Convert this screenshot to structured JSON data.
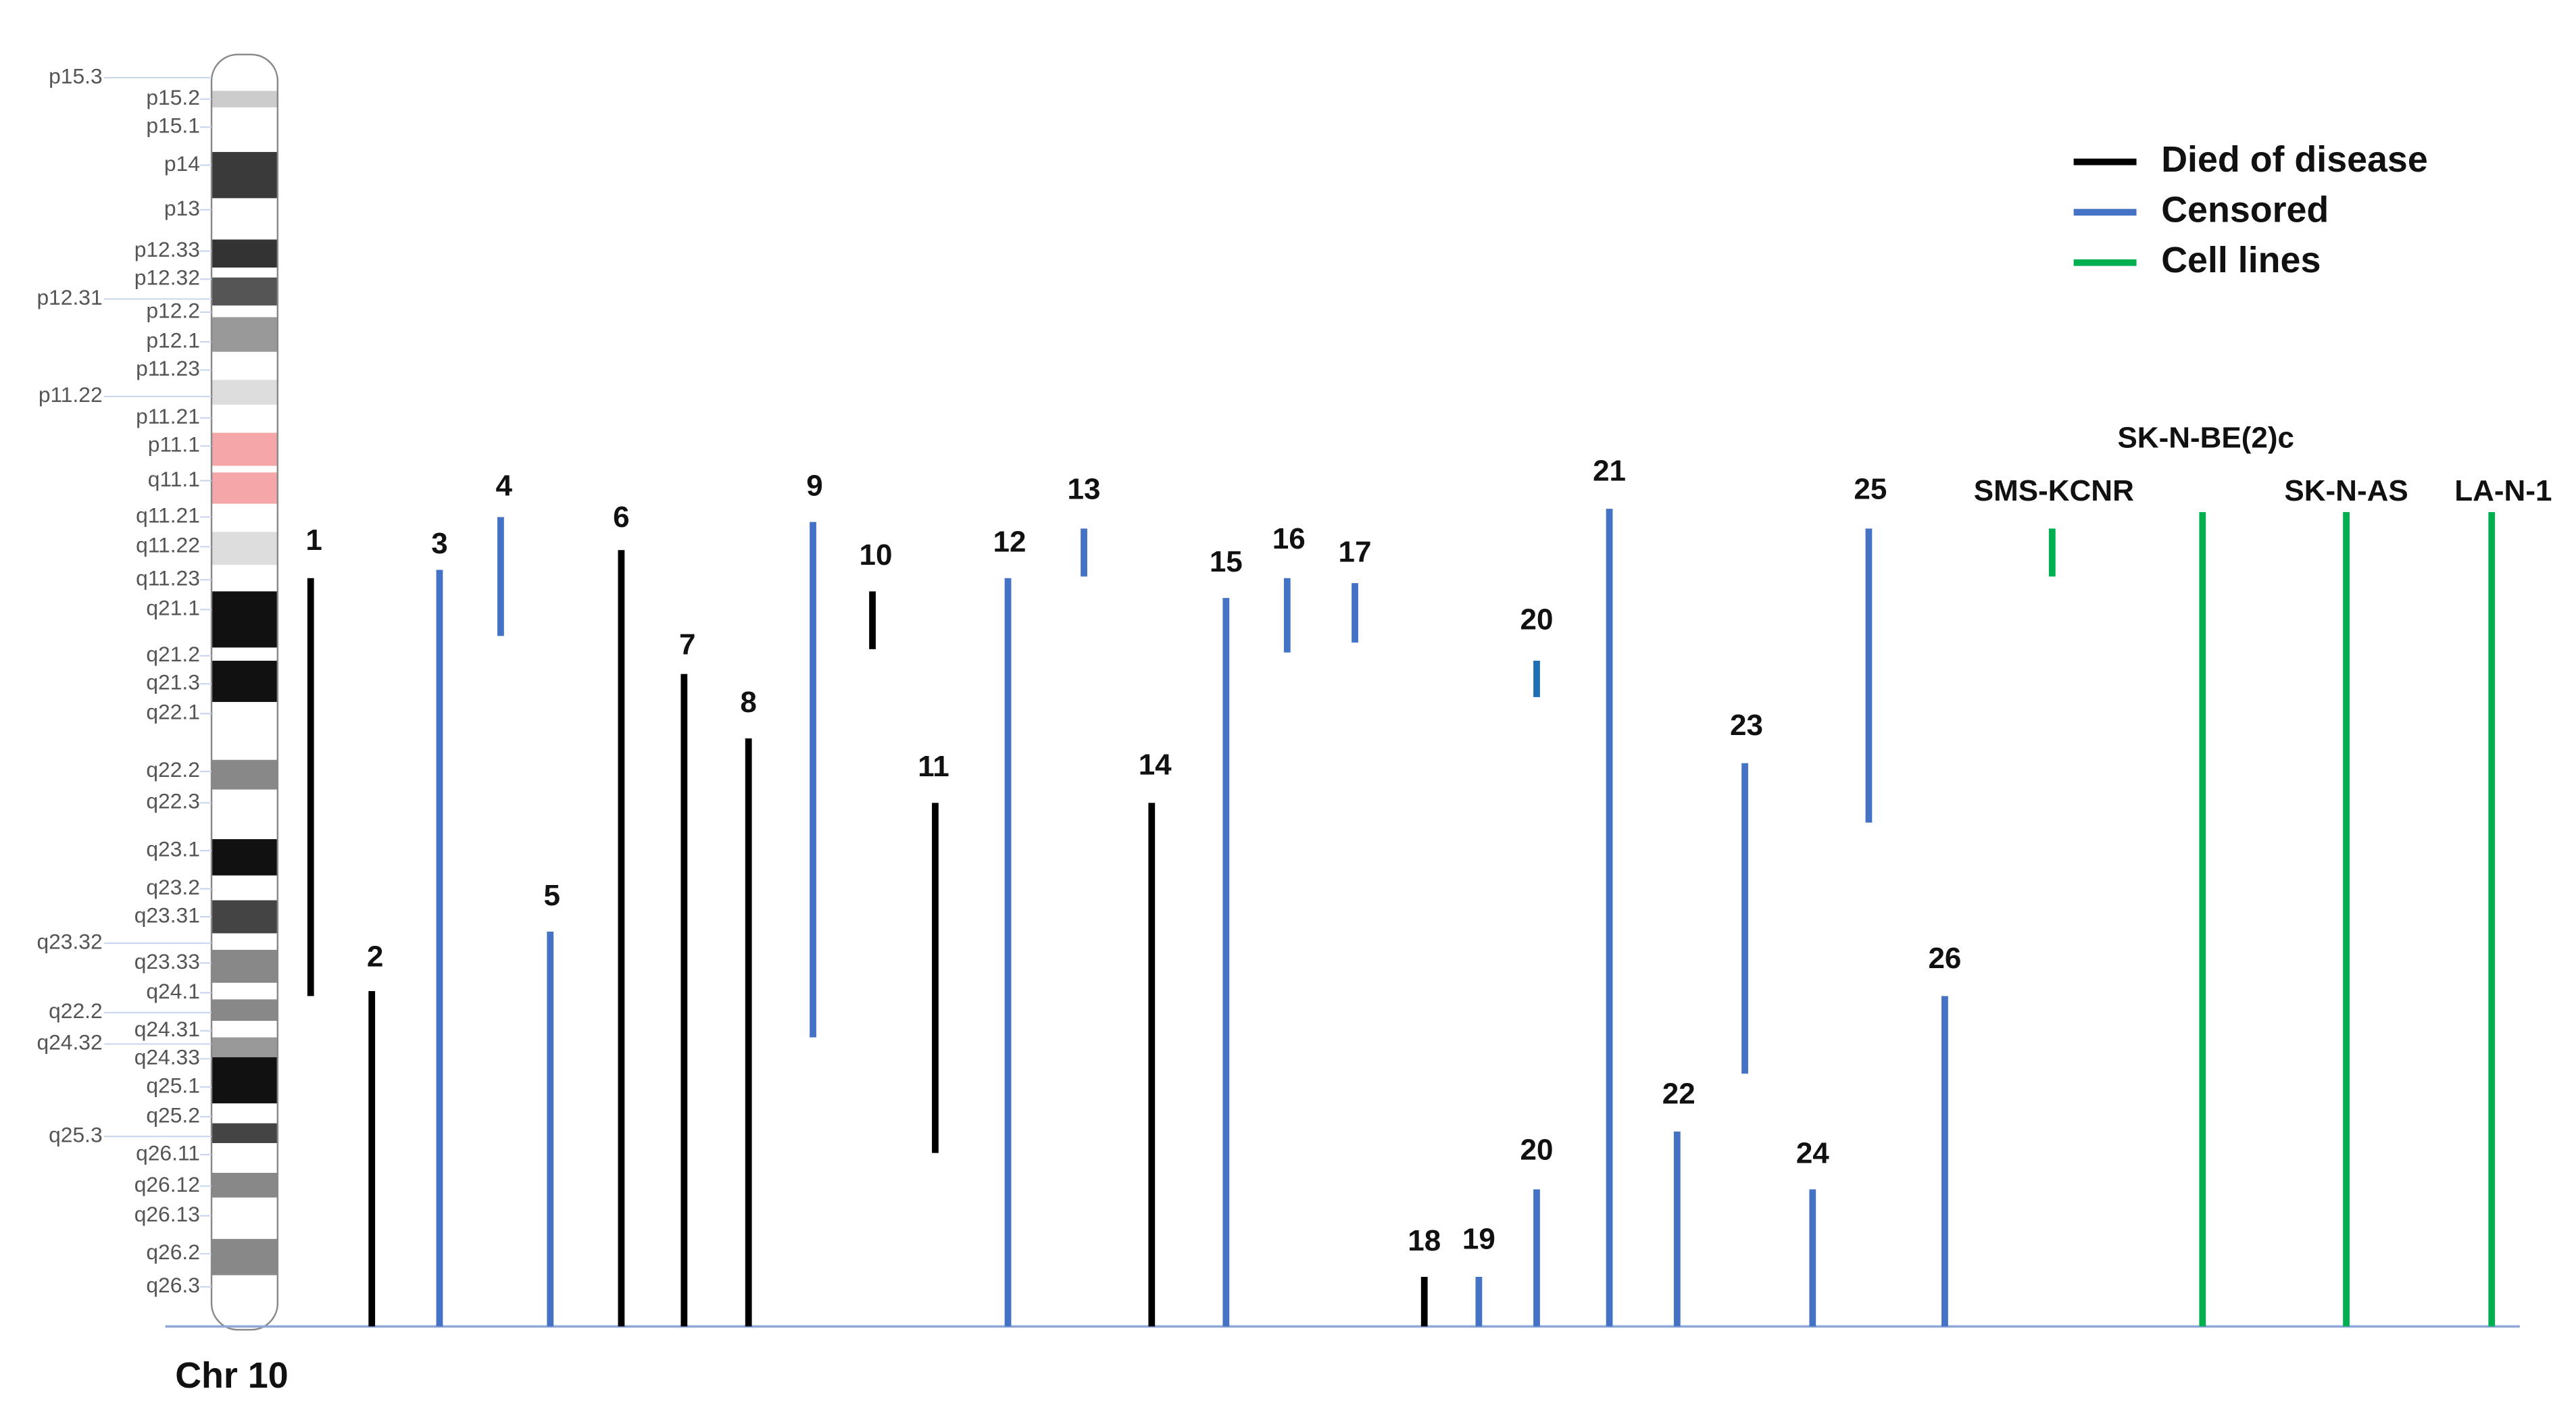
{
  "chromosome": {
    "name": "Chr 10",
    "bands_left": [
      "p15.3",
      "p12.31",
      "p11.22",
      "q23.32",
      "q22.2",
      "q24.32",
      "q25.3"
    ],
    "bands_right": [
      "p15.2",
      "p15.1",
      "p14",
      "p13",
      "p12.33",
      "p12.32",
      "p12.2",
      "p12.1",
      "p11.23",
      "p11.21",
      "p11.1",
      "q11.1",
      "q11.21",
      "q11.22",
      "q11.23",
      "q21.1",
      "q21.2",
      "q21.3",
      "q22.1",
      "q22.2",
      "q22.3",
      "q23.1",
      "q23.2",
      "q23.31",
      "q23.33",
      "q24.1",
      "q24.31",
      "q24.33",
      "q25.1",
      "q25.2",
      "q26.11",
      "q26.12",
      "q26.13",
      "q26.2",
      "q26.3"
    ]
  },
  "legend": [
    {
      "label": "Died of disease",
      "color": "#000000",
      "segments": [
        "1",
        "2",
        "6",
        "7",
        "8",
        "10",
        "11",
        "14",
        "18"
      ]
    },
    {
      "label": "Censored",
      "color": "#4472c4",
      "segments": [
        "3",
        "4",
        "5",
        "9",
        "12",
        "13",
        "15",
        "16",
        "17",
        "19",
        "20",
        "20",
        "21",
        "22",
        "23",
        "24",
        "25",
        "26"
      ]
    },
    {
      "label": "Cell lines",
      "color": "#00b050",
      "segments": [
        "SMS-KCNR",
        "SK-N-BE(2)c",
        "SK-N-AS",
        "LA-N-1"
      ]
    }
  ]
}
